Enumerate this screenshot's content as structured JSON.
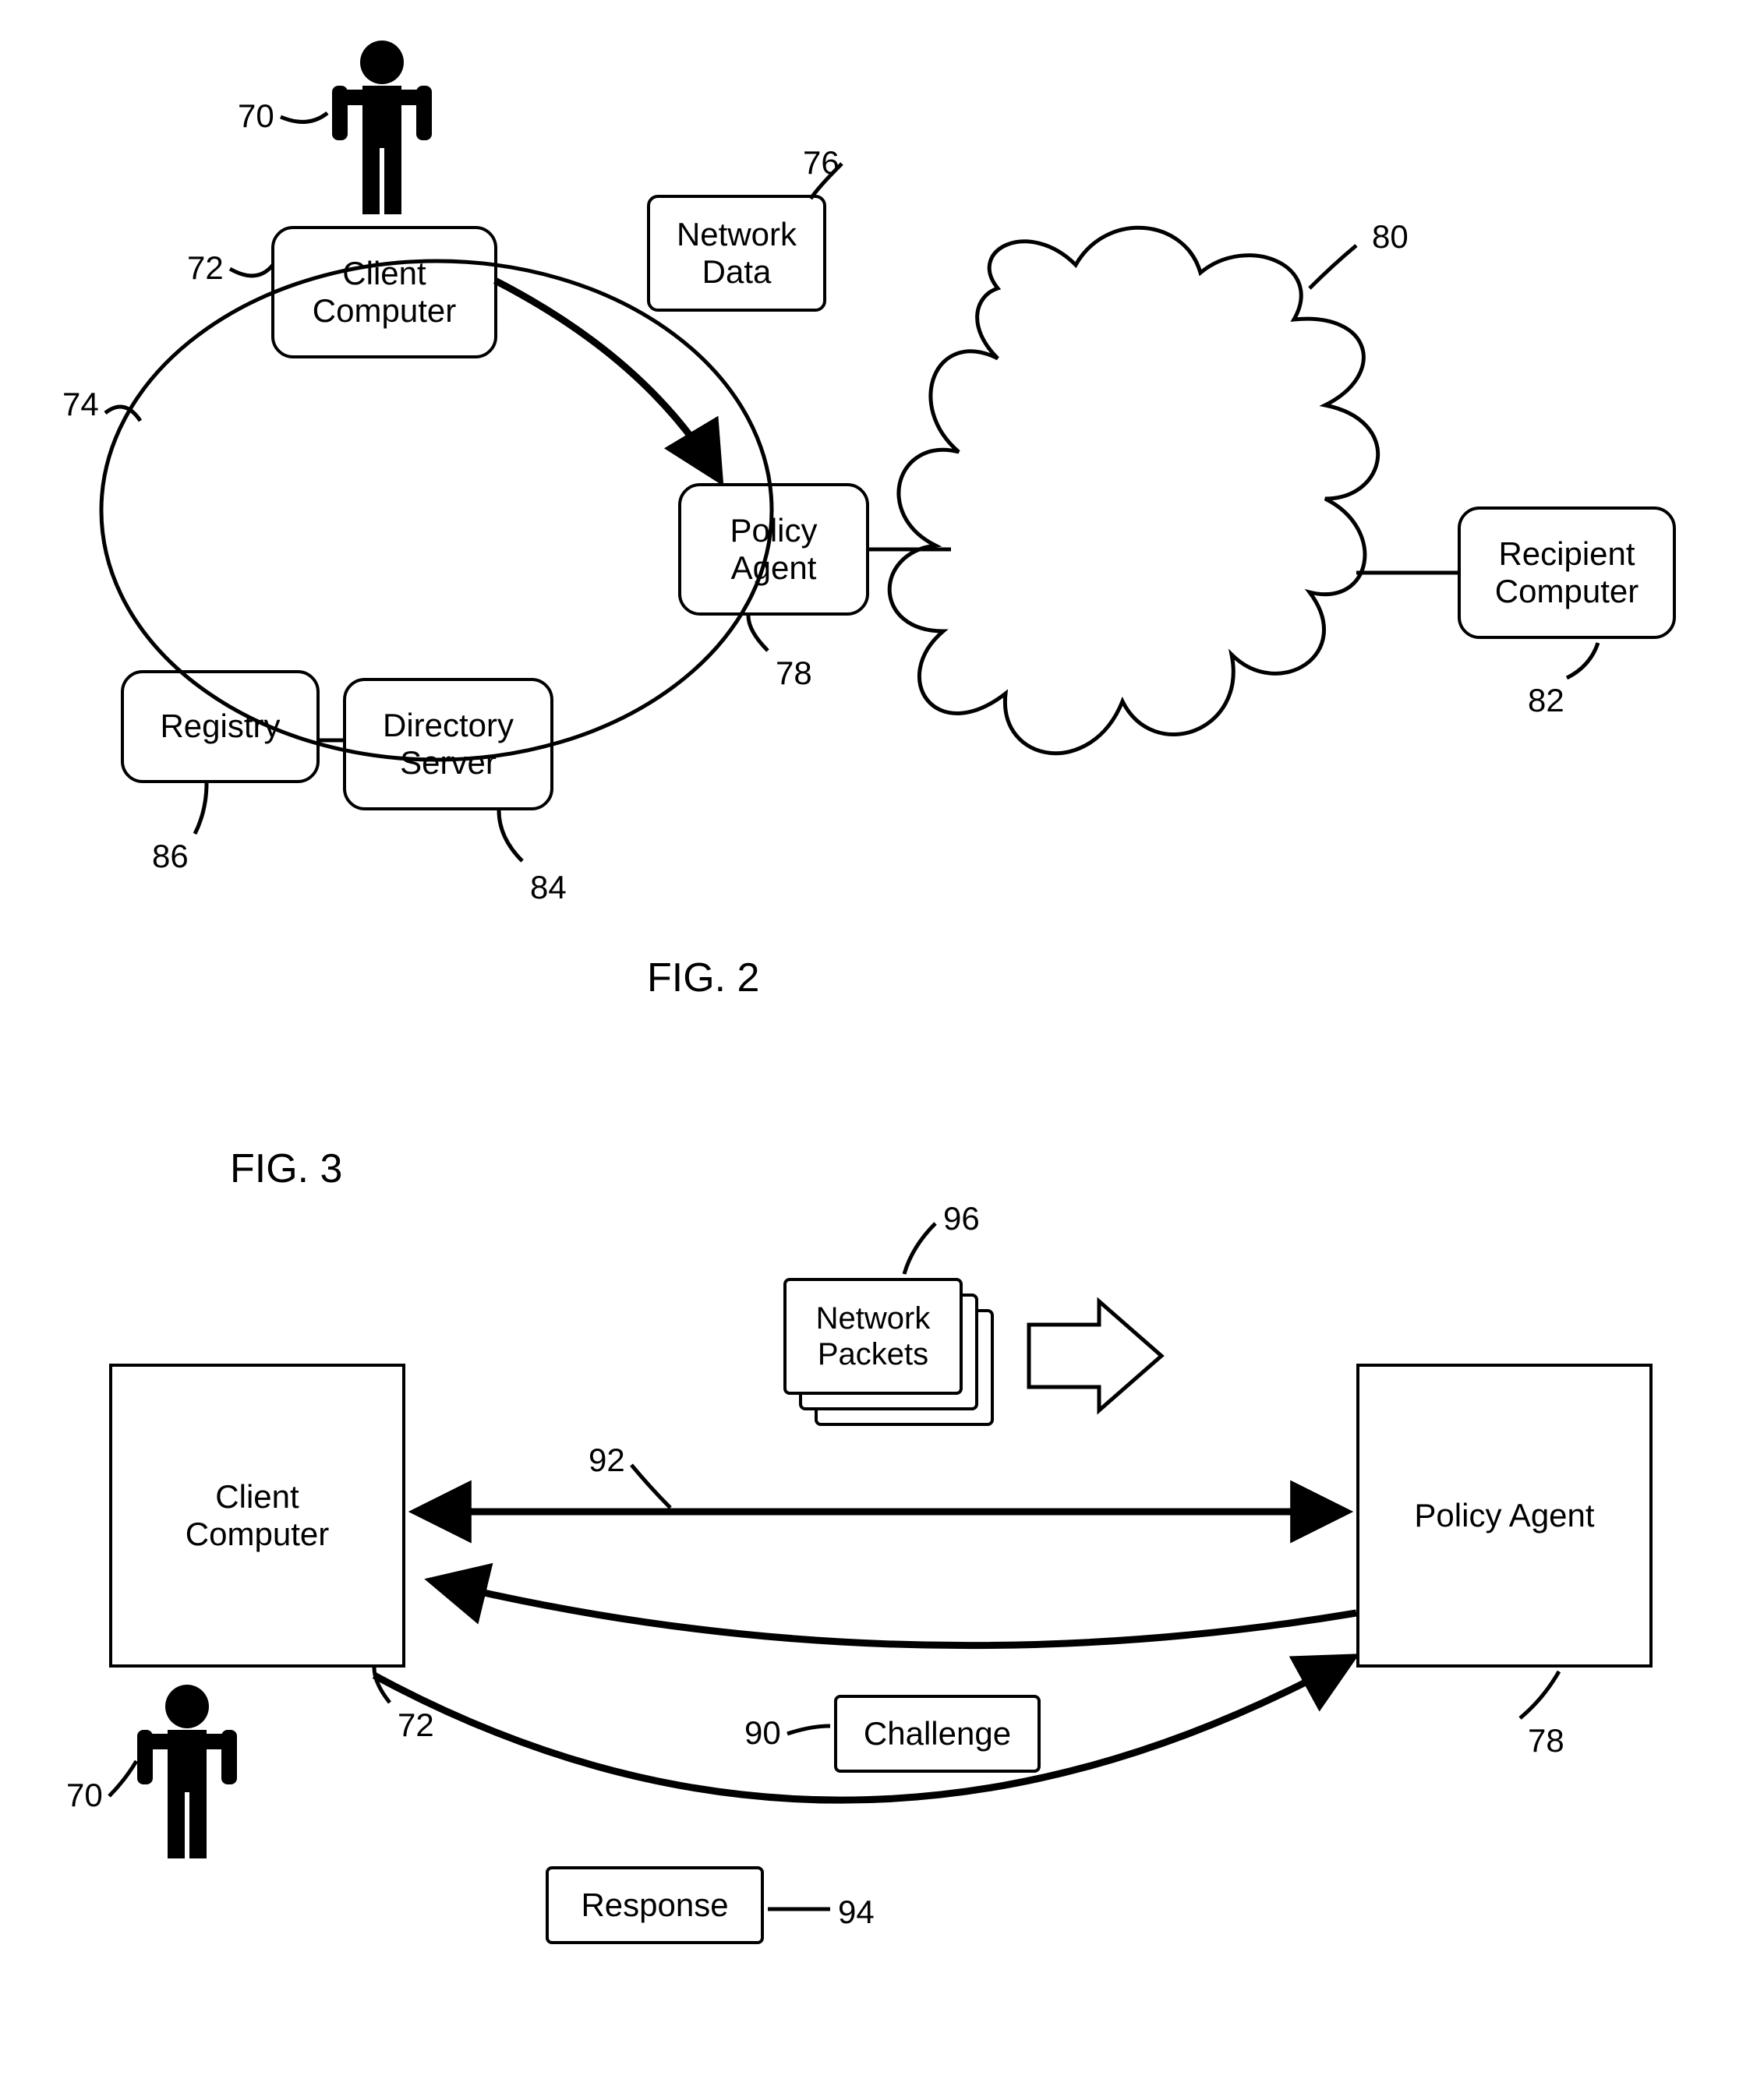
{
  "font_sizes": {
    "node": 42,
    "label": 42,
    "fig": 52
  },
  "colors": {
    "stroke": "#000000",
    "bg": "#ffffff",
    "fill": "#ffffff"
  },
  "fig2": {
    "title": "FIG. 2",
    "nodes": {
      "client": {
        "label": "Client\nComputer",
        "ref": "72"
      },
      "netdata": {
        "label": "Network\nData",
        "ref": "76"
      },
      "policy": {
        "label": "Policy\nAgent",
        "ref": "78"
      },
      "recipient": {
        "label": "Recipient\nComputer",
        "ref": "82"
      },
      "directory": {
        "label": "Directory\nServer",
        "ref": "84"
      },
      "registry": {
        "label": "Registry",
        "ref": "86"
      }
    },
    "labels": {
      "user": "70",
      "network": "74",
      "cloud": "80"
    }
  },
  "fig3": {
    "title": "FIG. 3",
    "nodes": {
      "client": {
        "label": "Client\nComputer",
        "ref": "72"
      },
      "policy": {
        "label": "Policy Agent",
        "ref": "78"
      },
      "challenge": {
        "label": "Challenge",
        "ref": "90"
      },
      "response": {
        "label": "Response",
        "ref": "94"
      },
      "packets": {
        "label": "Network\nPackets",
        "ref": "96"
      }
    },
    "labels": {
      "user": "70",
      "link": "92"
    }
  }
}
